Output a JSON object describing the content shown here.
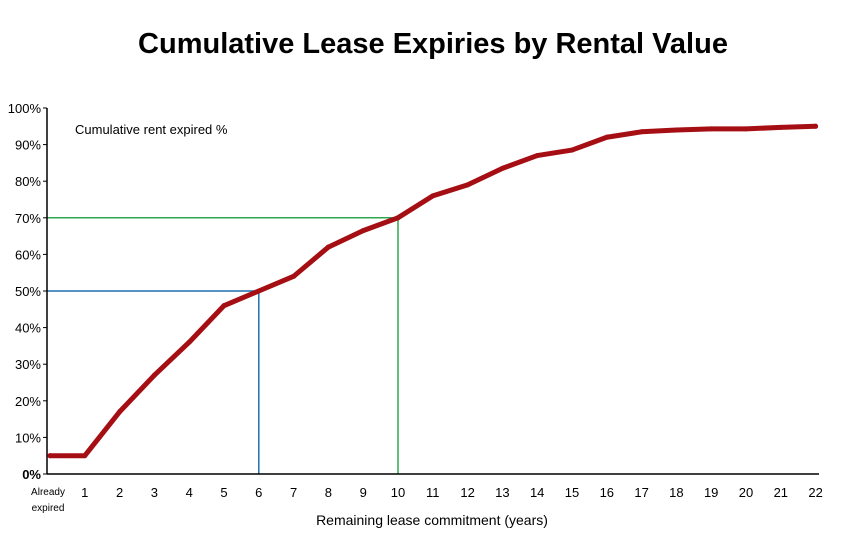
{
  "chart_data": {
    "type": "line",
    "title": "Cumulative Lease Expiries by Rental Value",
    "xlabel": "Remaining lease commitment (years)",
    "ylabel": "",
    "annotation": "Cumulative rent expired %",
    "categories": [
      "Already expired",
      "1",
      "2",
      "3",
      "4",
      "5",
      "6",
      "7",
      "8",
      "9",
      "10",
      "11",
      "12",
      "13",
      "14",
      "15",
      "16",
      "17",
      "18",
      "19",
      "20",
      "21",
      "22"
    ],
    "series": [
      {
        "name": "",
        "color": "#a50f14",
        "values": [
          5,
          5,
          17,
          27,
          36,
          46,
          50,
          54,
          62,
          66.5,
          70,
          76,
          79,
          83.5,
          87,
          88.5,
          92,
          93.5,
          94,
          94.3,
          94.3,
          94.7,
          95
        ]
      }
    ],
    "ylim": [
      0,
      100
    ],
    "yticks": [
      "0%",
      "10%",
      "20%",
      "30%",
      "40%",
      "50%",
      "60%",
      "70%",
      "80%",
      "90%",
      "100%"
    ],
    "reference_lines": [
      {
        "x": "6",
        "y": 50,
        "color": "#1f6fb0"
      },
      {
        "x": "10",
        "y": 70,
        "color": "#2ea84f"
      }
    ],
    "grid": false
  }
}
